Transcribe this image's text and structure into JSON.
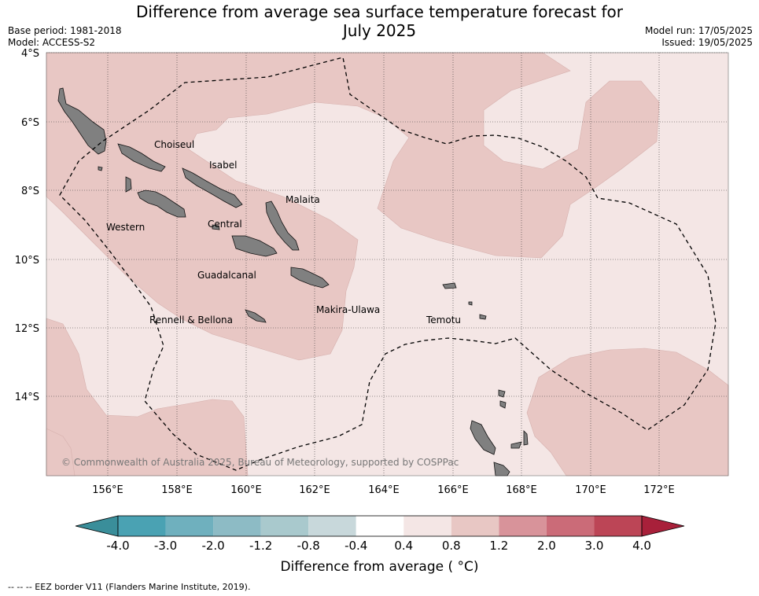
{
  "header": {
    "title_line1": "Difference from average sea surface temperature forecast for",
    "title_line2": "July 2025",
    "base_period": "Base period: 1981-2018",
    "model": "Model: ACCESS-S2",
    "model_run": "Model run: 17/05/2025",
    "issued": "Issued: 19/05/2025"
  },
  "map": {
    "lat_labels": [
      "4°S",
      "6°S",
      "8°S",
      "10°S",
      "12°S",
      "14°S"
    ],
    "lon_labels": [
      "156°E",
      "158°E",
      "160°E",
      "162°E",
      "164°E",
      "166°E",
      "168°E",
      "170°E",
      "172°E"
    ],
    "regions": [
      "Choiseul",
      "Isabel",
      "Malaita",
      "Western",
      "Central",
      "Guadalcanal",
      "Makira-Ulawa",
      "Rennell & Bellona",
      "Temotu"
    ],
    "copyright": "© Commonwealth of Australia 2025, Bureau of Meteorology, supported by COSPPac",
    "colors": {
      "band_0_4_0_8": "#f4e6e5",
      "band_0_8_1_2": "#e8c7c4",
      "land": "#808080",
      "eez": "#000000"
    }
  },
  "colorbar": {
    "ticks": [
      "-4.0",
      "-3.0",
      "-2.0",
      "-1.2",
      "-0.8",
      "-0.4",
      "0.4",
      "0.8",
      "1.2",
      "2.0",
      "3.0",
      "4.0"
    ],
    "colors": [
      "#3a8e9a",
      "#4aa2b3",
      "#6fb0be",
      "#8dbbc5",
      "#a9c9cd",
      "#c8d8db",
      "#ffffff",
      "#f4e6e5",
      "#e8c7c4",
      "#d8939a",
      "#cb6b78",
      "#bc4556",
      "#a8203a"
    ],
    "label": "Difference from average ( °C)"
  },
  "footer": {
    "eez_note": "--  --  -- EEZ border V11 (Flanders Marine Institute, 2019)."
  }
}
